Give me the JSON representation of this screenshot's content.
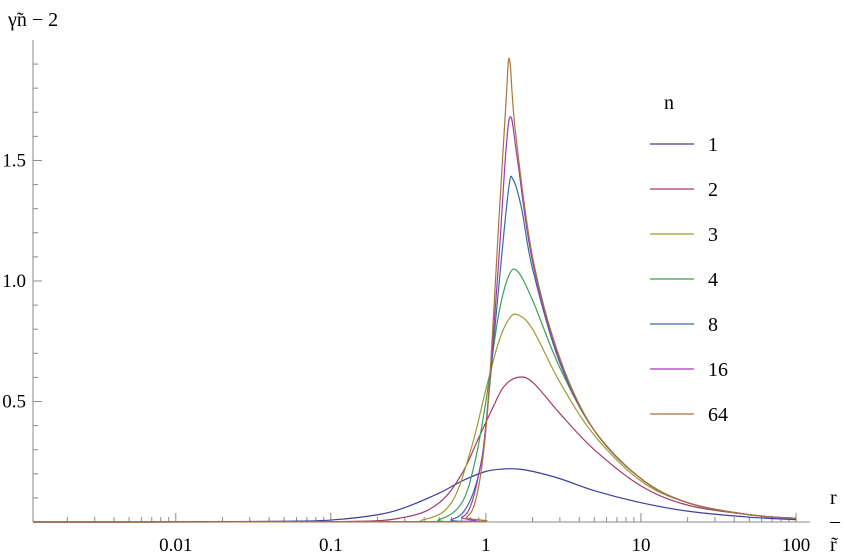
{
  "chart_data": {
    "type": "line",
    "ylabel": "γ̃n − 2",
    "xlabel_top": "r",
    "xlabel_rule": "–",
    "xlabel_bottom": "r̃",
    "x_scale": "log",
    "xlim": [
      0.001,
      120
    ],
    "ylim": [
      0,
      1.95
    ],
    "x_ticks": [
      {
        "value": 0.01,
        "label": "0.01"
      },
      {
        "value": 0.1,
        "label": "0.1"
      },
      {
        "value": 1,
        "label": "1"
      },
      {
        "value": 10,
        "label": "10"
      },
      {
        "value": 100,
        "label": "100"
      }
    ],
    "y_ticks": [
      {
        "value": 0.5,
        "label": "0.5"
      },
      {
        "value": 1.0,
        "label": "1.0"
      },
      {
        "value": 1.5,
        "label": "1.5"
      }
    ],
    "legend": {
      "title": "n",
      "position": "right"
    },
    "series": [
      {
        "name": "1",
        "color": "#3d3d9e",
        "x": [
          0.001,
          0.01,
          0.05,
          0.1,
          0.2,
          0.3,
          0.5,
          0.7,
          1.0,
          1.3,
          1.6,
          2.0,
          3.0,
          5.0,
          10,
          20,
          50,
          100
        ],
        "y": [
          0,
          0.0005,
          0.003,
          0.008,
          0.03,
          0.06,
          0.12,
          0.17,
          0.21,
          0.22,
          0.22,
          0.21,
          0.18,
          0.13,
          0.08,
          0.045,
          0.02,
          0.01
        ]
      },
      {
        "name": "2",
        "color": "#a33a6b",
        "x": [
          0.001,
          0.1,
          0.3,
          0.5,
          0.7,
          0.9,
          1.1,
          1.3,
          1.6,
          2.0,
          3.0,
          5.0,
          10,
          20,
          50,
          100
        ],
        "y": [
          0,
          0.001,
          0.02,
          0.08,
          0.2,
          0.35,
          0.47,
          0.56,
          0.6,
          0.58,
          0.45,
          0.3,
          0.15,
          0.07,
          0.03,
          0.015
        ]
      },
      {
        "name": "3",
        "color": "#9e9a32",
        "x": [
          0.001,
          0.2,
          0.4,
          0.6,
          0.8,
          1.0,
          1.2,
          1.4,
          1.6,
          2.0,
          3.0,
          5.0,
          10,
          20,
          50,
          100
        ],
        "y": [
          0,
          0.001,
          0.01,
          0.08,
          0.3,
          0.55,
          0.74,
          0.84,
          0.86,
          0.8,
          0.58,
          0.36,
          0.17,
          0.08,
          0.03,
          0.015
        ]
      },
      {
        "name": "4",
        "color": "#3e9e5a",
        "x": [
          0.001,
          0.3,
          0.5,
          0.7,
          0.85,
          1.0,
          1.2,
          1.4,
          1.6,
          2.0,
          3.0,
          5.0,
          10,
          20,
          50,
          100
        ],
        "y": [
          0,
          0.001,
          0.01,
          0.08,
          0.25,
          0.5,
          0.85,
          1.02,
          1.04,
          0.92,
          0.64,
          0.38,
          0.18,
          0.08,
          0.03,
          0.015
        ]
      },
      {
        "name": "8",
        "color": "#3a6aa0",
        "x": [
          0.001,
          0.4,
          0.6,
          0.75,
          0.9,
          1.0,
          1.2,
          1.4,
          1.5,
          1.7,
          2.0,
          3.0,
          5.0,
          10,
          20,
          50,
          100
        ],
        "y": [
          0,
          0.001,
          0.01,
          0.06,
          0.2,
          0.4,
          0.95,
          1.38,
          1.42,
          1.3,
          1.05,
          0.66,
          0.38,
          0.18,
          0.08,
          0.03,
          0.015
        ]
      },
      {
        "name": "16",
        "color": "#a03ab0",
        "x": [
          0.001,
          0.5,
          0.7,
          0.8,
          0.9,
          1.0,
          1.2,
          1.35,
          1.45,
          1.6,
          2.0,
          3.0,
          5.0,
          10,
          20,
          50,
          100
        ],
        "y": [
          0,
          0.001,
          0.02,
          0.07,
          0.2,
          0.4,
          1.05,
          1.55,
          1.68,
          1.5,
          1.08,
          0.67,
          0.38,
          0.18,
          0.08,
          0.03,
          0.015
        ]
      },
      {
        "name": "64",
        "color": "#a8763a",
        "x": [
          0.001,
          0.6,
          0.75,
          0.85,
          0.95,
          1.05,
          1.2,
          1.35,
          1.42,
          1.55,
          2.0,
          3.0,
          5.0,
          10,
          20,
          50,
          100
        ],
        "y": [
          0,
          0.001,
          0.02,
          0.08,
          0.25,
          0.55,
          1.2,
          1.75,
          1.92,
          1.62,
          1.1,
          0.68,
          0.38,
          0.18,
          0.08,
          0.03,
          0.015
        ]
      }
    ]
  }
}
